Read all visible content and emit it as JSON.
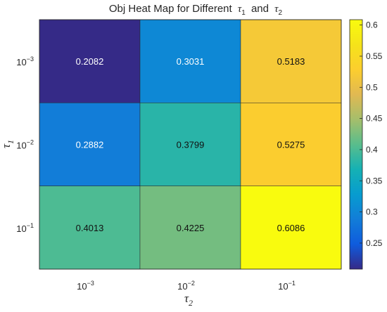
{
  "chart_data": {
    "type": "heatmap",
    "title": "Obj Heat Map for Different",
    "title_symbols": {
      "tau1": "τ",
      "tau1_sub": "1",
      "and": "and",
      "tau2": "τ",
      "tau2_sub": "2"
    },
    "xlabel": {
      "symbol": "τ",
      "sub": "2"
    },
    "ylabel": {
      "symbol": "τ",
      "sub": "1"
    },
    "x_categories": [
      {
        "base": "10",
        "exp": "−3"
      },
      {
        "base": "10",
        "exp": "−2"
      },
      {
        "base": "10",
        "exp": "−1"
      }
    ],
    "y_categories": [
      {
        "base": "10",
        "exp": "−3"
      },
      {
        "base": "10",
        "exp": "−2"
      },
      {
        "base": "10",
        "exp": "−1"
      }
    ],
    "values": [
      [
        0.2082,
        0.3031,
        0.5183
      ],
      [
        0.2882,
        0.3799,
        0.5275
      ],
      [
        0.4013,
        0.4225,
        0.6086
      ]
    ],
    "cell_labels": [
      [
        "0.2082",
        "0.3031",
        "0.5183"
      ],
      [
        "0.2882",
        "0.3799",
        "0.5275"
      ],
      [
        "0.4013",
        "0.4225",
        "0.6086"
      ]
    ],
    "colorbar": {
      "colormap": "parula",
      "range": [
        0.2082,
        0.6086
      ],
      "ticks": [
        0.25,
        0.3,
        0.35,
        0.4,
        0.45,
        0.5,
        0.55,
        0.6
      ],
      "tick_labels": [
        "0.25",
        "0.3",
        "0.35",
        "0.4",
        "0.45",
        "0.5",
        "0.55",
        "0.6"
      ]
    },
    "grid": false
  }
}
